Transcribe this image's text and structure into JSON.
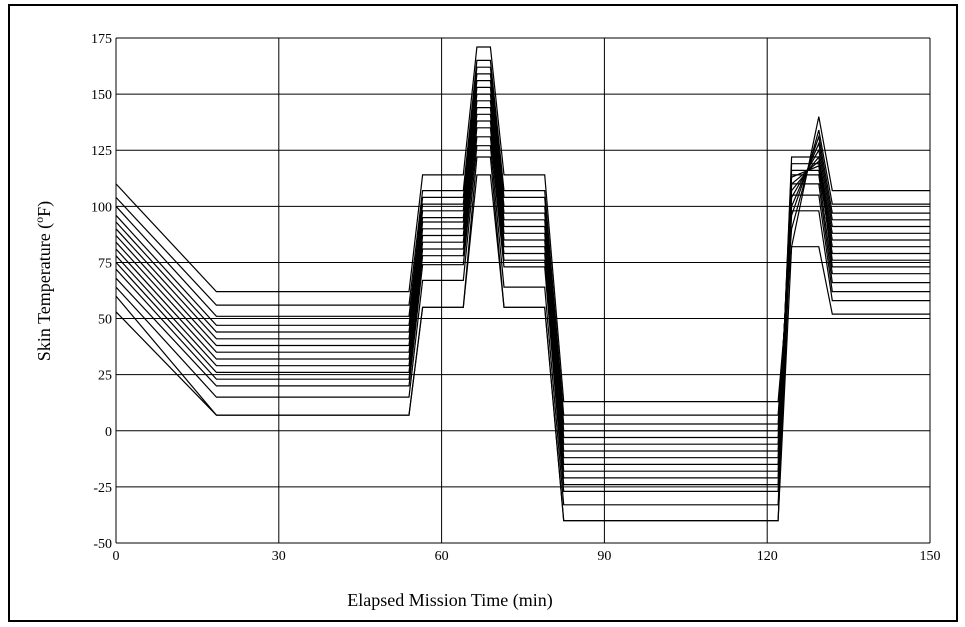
{
  "chart_data": {
    "type": "line",
    "title": "",
    "xlabel": "Elapsed Mission Time (min)",
    "ylabel_prefix": "Skin Temperature (",
    "ylabel_superscript": "o",
    "ylabel_suffix": "F)",
    "xlim": [
      0,
      150
    ],
    "ylim": [
      -50,
      175
    ],
    "x_ticks": [
      0,
      30,
      60,
      90,
      120,
      150
    ],
    "x_tick_labels": [
      "0",
      "30",
      "60",
      "90",
      "120",
      "150"
    ],
    "y_ticks": [
      -50,
      -25,
      0,
      25,
      50,
      75,
      100,
      125,
      150,
      175
    ],
    "y_tick_labels": [
      "-50",
      "-25",
      "0",
      "25",
      "50",
      "75",
      "100",
      "125",
      "150",
      "175"
    ],
    "grid": true,
    "legend": "none",
    "x": [
      0,
      18.5,
      54,
      56.5,
      64,
      66.5,
      69,
      71.5,
      79,
      82.5,
      122,
      124.5,
      129.5,
      132,
      150
    ],
    "series": [
      {
        "values": [
          110,
          62,
          62,
          114,
          114,
          171,
          171,
          114,
          114,
          13,
          13,
          82,
          140,
          107,
          107
        ]
      },
      {
        "values": [
          104,
          56,
          56,
          107,
          107,
          165,
          165,
          107,
          107,
          7,
          7,
          90,
          134,
          101,
          101
        ]
      },
      {
        "values": [
          100,
          51,
          51,
          104,
          104,
          162,
          162,
          104,
          104,
          3,
          3,
          96,
          131,
          97,
          97
        ]
      },
      {
        "values": [
          96,
          47,
          47,
          101,
          101,
          159,
          159,
          100,
          100,
          0,
          0,
          100,
          128,
          94,
          94
        ]
      },
      {
        "values": [
          93,
          44,
          44,
          98,
          98,
          156,
          156,
          97,
          97,
          -3,
          -3,
          104,
          125,
          91,
          91
        ]
      },
      {
        "values": [
          90,
          41,
          41,
          95,
          95,
          153,
          153,
          94,
          94,
          -6,
          -6,
          107,
          122,
          88,
          88
        ]
      },
      {
        "values": [
          87,
          38,
          38,
          93,
          93,
          150,
          150,
          91,
          91,
          -9,
          -9,
          110,
          120,
          85,
          85
        ]
      },
      {
        "values": [
          84,
          35,
          35,
          90,
          90,
          147,
          147,
          88,
          88,
          -12,
          -12,
          113,
          118,
          82,
          82
        ]
      },
      {
        "values": [
          81,
          32,
          32,
          87,
          87,
          144,
          144,
          85,
          85,
          -15,
          -15,
          116,
          116,
          79,
          79
        ]
      },
      {
        "values": [
          78,
          29,
          29,
          84,
          84,
          141,
          141,
          82,
          82,
          -18,
          -18,
          119,
          119,
          76,
          76
        ]
      },
      {
        "values": [
          75,
          26,
          26,
          81,
          81,
          138,
          138,
          79,
          79,
          -21,
          -21,
          122,
          122,
          73,
          73
        ]
      },
      {
        "values": [
          72,
          23,
          23,
          78,
          78,
          135,
          135,
          76,
          76,
          -24,
          -24,
          114,
          114,
          70,
          70
        ]
      },
      {
        "values": [
          68,
          20,
          20,
          74,
          74,
          131,
          131,
          73,
          73,
          -27,
          -27,
          110,
          110,
          66,
          66
        ]
      },
      {
        "values": [
          64,
          15,
          15,
          67,
          67,
          127,
          127,
          64,
          64,
          -33,
          -33,
          105,
          105,
          62,
          62
        ]
      },
      {
        "values": [
          60,
          7,
          7,
          55,
          55,
          122,
          122,
          55,
          55,
          -40,
          -40,
          98,
          98,
          58,
          58
        ]
      },
      {
        "values": [
          53,
          7,
          7,
          55,
          55,
          114,
          114,
          55,
          55,
          -40,
          -40,
          82,
          82,
          52,
          52
        ]
      }
    ]
  }
}
